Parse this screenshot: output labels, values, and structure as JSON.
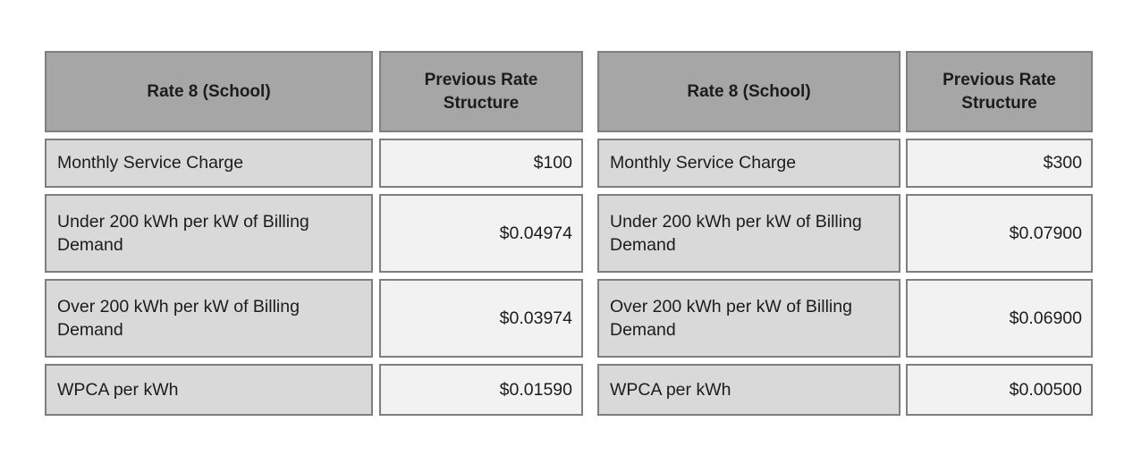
{
  "colors": {
    "header_fill": "#a6a6a6",
    "label_fill": "#d9d9d9",
    "value_fill": "#f2f2f2",
    "cell_border": "#7f7f7f",
    "page_background": "#ffffff",
    "text": "#1c1c1c"
  },
  "tables": [
    {
      "header": {
        "label": "Rate 8 (School)",
        "value": "Previous Rate Structure"
      },
      "rows": [
        {
          "label": "Monthly Service Charge",
          "value": "$100"
        },
        {
          "label": "Under 200 kWh per kW of Billing Demand",
          "value": "$0.04974"
        },
        {
          "label": "Over 200 kWh per kW of Billing Demand",
          "value": "$0.03974"
        },
        {
          "label": "WPCA per kWh",
          "value": "$0.01590"
        }
      ]
    },
    {
      "header": {
        "label": "Rate 8 (School)",
        "value": "Previous Rate Structure"
      },
      "rows": [
        {
          "label": "Monthly Service Charge",
          "value": "$300"
        },
        {
          "label": "Under 200 kWh per kW of Billing Demand",
          "value": "$0.07900"
        },
        {
          "label": "Over 200 kWh per kW of Billing Demand",
          "value": "$0.06900"
        },
        {
          "label": "WPCA per kWh",
          "value": "$0.00500"
        }
      ]
    }
  ],
  "chart_data": {
    "type": "table",
    "title": "",
    "columns": [
      "Rate 8 (School)",
      "Previous Rate Structure",
      "Rate 8 (School)",
      "Previous Rate Structure"
    ],
    "rows": [
      [
        "Monthly Service Charge",
        "$100",
        "Monthly Service Charge",
        "$300"
      ],
      [
        "Under 200 kWh per kW of Billing Demand",
        "$0.04974",
        "Under 200 kWh per kW of Billing Demand",
        "$0.07900"
      ],
      [
        "Over 200 kWh per kW of Billing Demand",
        "$0.03974",
        "Over 200 kWh per kW of Billing Demand",
        "$0.06900"
      ],
      [
        "WPCA per kWh",
        "$0.01590",
        "WPCA per kWh",
        "$0.00500"
      ]
    ]
  }
}
